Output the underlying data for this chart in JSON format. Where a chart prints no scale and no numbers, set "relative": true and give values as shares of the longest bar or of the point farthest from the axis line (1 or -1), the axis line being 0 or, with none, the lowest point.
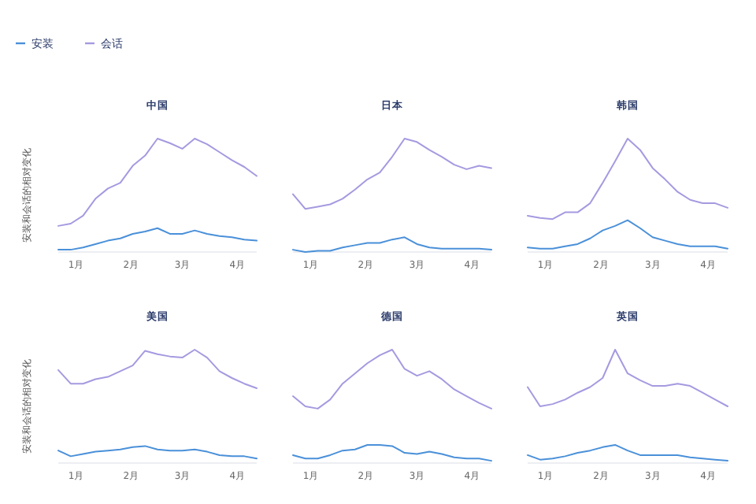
{
  "chart_data": [
    {
      "type": "line",
      "title": "中国",
      "ylabel": "安装和会话的相对变化",
      "relative": true,
      "legend": "top left",
      "tick_labels": "x",
      "xlim": [
        "--01-05",
        "--04-26"
      ],
      "xticks": [
        {
          "value": "--01-15",
          "label": "1月"
        },
        {
          "value": "--02-15",
          "label": "2月"
        },
        {
          "value": "--03-15",
          "label": "3月"
        },
        {
          "value": "--04-15",
          "label": "4月"
        }
      ],
      "x": [
        "--01-05",
        "--01-12",
        "--01-19",
        "--01-26",
        "--02-02",
        "--02-09",
        "--02-16",
        "--02-23",
        "--03-01",
        "--03-08",
        "--03-15",
        "--03-22",
        "--03-29",
        "--04-05",
        "--04-12",
        "--04-19",
        "--04-26"
      ],
      "series": [
        {
          "name": "安装",
          "color": "#4a90d9",
          "values": [
            0.02,
            0.02,
            0.04,
            0.07,
            0.1,
            0.12,
            0.16,
            0.18,
            0.21,
            0.16,
            0.16,
            0.19,
            0.16,
            0.14,
            0.13,
            0.11,
            0.1
          ]
        },
        {
          "name": "会话",
          "color": "#a59ae0",
          "values": [
            0.23,
            0.25,
            0.32,
            0.47,
            0.56,
            0.61,
            0.76,
            0.85,
            1.0,
            0.96,
            0.91,
            1.0,
            0.95,
            0.88,
            0.81,
            0.75,
            0.67
          ]
        }
      ]
    },
    {
      "type": "line",
      "title": "日本",
      "relative": true,
      "tick_labels": "x",
      "xlim": [
        "--01-05",
        "--04-26"
      ],
      "xticks": [
        {
          "value": "--01-15",
          "label": "1月"
        },
        {
          "value": "--02-15",
          "label": "2月"
        },
        {
          "value": "--03-15",
          "label": "3月"
        },
        {
          "value": "--04-15",
          "label": "4月"
        }
      ],
      "x": [
        "--01-05",
        "--01-12",
        "--01-19",
        "--01-26",
        "--02-02",
        "--02-09",
        "--02-16",
        "--02-23",
        "--03-01",
        "--03-08",
        "--03-15",
        "--03-22",
        "--03-29",
        "--04-05",
        "--04-12",
        "--04-19",
        "--04-26"
      ],
      "series": [
        {
          "color": "#4a90d9",
          "values": [
            0.02,
            0,
            0.01,
            0.01,
            0.04,
            0.06,
            0.08,
            0.08,
            0.11,
            0.13,
            0.07,
            0.04,
            0.03,
            0.03,
            0.03,
            0.03,
            0.02
          ]
        },
        {
          "color": "#a59ae0",
          "values": [
            0.51,
            0.38,
            0.4,
            0.42,
            0.47,
            0.55,
            0.64,
            0.7,
            0.84,
            1.0,
            0.97,
            0.9,
            0.84,
            0.77,
            0.73,
            0.76,
            0.74
          ]
        }
      ]
    },
    {
      "type": "line",
      "title": "韩国",
      "relative": true,
      "tick_labels": "x",
      "xlim": [
        "--01-05",
        "--04-26"
      ],
      "xticks": [
        {
          "value": "--01-15",
          "label": "1月"
        },
        {
          "value": "--02-15",
          "label": "2月"
        },
        {
          "value": "--03-15",
          "label": "3月"
        },
        {
          "value": "--04-15",
          "label": "4月"
        }
      ],
      "x": [
        "--01-05",
        "--01-12",
        "--01-19",
        "--01-26",
        "--02-02",
        "--02-09",
        "--02-16",
        "--02-23",
        "--03-01",
        "--03-08",
        "--03-15",
        "--03-22",
        "--03-29",
        "--04-05",
        "--04-12",
        "--04-19",
        "--04-26"
      ],
      "series": [
        {
          "color": "#4a90d9",
          "values": [
            0.04,
            0.03,
            0.03,
            0.05,
            0.07,
            0.12,
            0.19,
            0.23,
            0.28,
            0.21,
            0.13,
            0.1,
            0.07,
            0.05,
            0.05,
            0.05,
            0.03
          ]
        },
        {
          "color": "#a59ae0",
          "values": [
            0.32,
            0.3,
            0.29,
            0.35,
            0.35,
            0.43,
            0.61,
            0.8,
            1.0,
            0.9,
            0.74,
            0.64,
            0.53,
            0.46,
            0.43,
            0.43,
            0.39
          ]
        }
      ]
    },
    {
      "type": "line",
      "title": "美国",
      "ylabel": "安装和会话的相对变化",
      "relative": true,
      "tick_labels": "x",
      "xlim": [
        "--01-05",
        "--04-26"
      ],
      "xticks": [
        {
          "value": "--01-15",
          "label": "1月"
        },
        {
          "value": "--02-15",
          "label": "2月"
        },
        {
          "value": "--03-15",
          "label": "3月"
        },
        {
          "value": "--04-15",
          "label": "4月"
        }
      ],
      "x": [
        "--01-05",
        "--01-12",
        "--01-19",
        "--01-26",
        "--02-02",
        "--02-09",
        "--02-16",
        "--02-23",
        "--03-01",
        "--03-08",
        "--03-15",
        "--03-22",
        "--03-29",
        "--04-05",
        "--04-12",
        "--04-19",
        "--04-26"
      ],
      "series": [
        {
          "color": "#4a90d9",
          "values": [
            0.11,
            0.06,
            0.08,
            0.1,
            0.11,
            0.12,
            0.14,
            0.15,
            0.12,
            0.11,
            0.11,
            0.12,
            0.1,
            0.07,
            0.06,
            0.06,
            0.04
          ]
        },
        {
          "color": "#a59ae0",
          "values": [
            0.82,
            0.7,
            0.7,
            0.74,
            0.76,
            0.81,
            0.86,
            0.99,
            0.96,
            0.94,
            0.93,
            1.0,
            0.93,
            0.81,
            0.75,
            0.7,
            0.66
          ]
        }
      ]
    },
    {
      "type": "line",
      "title": "德国",
      "relative": true,
      "tick_labels": "x",
      "xlim": [
        "--01-05",
        "--04-26"
      ],
      "xticks": [
        {
          "value": "--01-15",
          "label": "1月"
        },
        {
          "value": "--02-15",
          "label": "2月"
        },
        {
          "value": "--03-15",
          "label": "3月"
        },
        {
          "value": "--04-15",
          "label": "4月"
        }
      ],
      "x": [
        "--01-05",
        "--01-12",
        "--01-19",
        "--01-26",
        "--02-02",
        "--02-09",
        "--02-16",
        "--02-23",
        "--03-01",
        "--03-08",
        "--03-15",
        "--03-22",
        "--03-29",
        "--04-05",
        "--04-12",
        "--04-19",
        "--04-26"
      ],
      "series": [
        {
          "color": "#4a90d9",
          "values": [
            0.07,
            0.04,
            0.04,
            0.07,
            0.11,
            0.12,
            0.16,
            0.16,
            0.15,
            0.09,
            0.08,
            0.1,
            0.08,
            0.05,
            0.04,
            0.04,
            0.02
          ]
        },
        {
          "color": "#a59ae0",
          "values": [
            0.59,
            0.5,
            0.48,
            0.56,
            0.7,
            0.79,
            0.88,
            0.95,
            1.0,
            0.83,
            0.77,
            0.81,
            0.74,
            0.65,
            0.59,
            0.53,
            0.48
          ]
        }
      ]
    },
    {
      "type": "line",
      "title": "英国",
      "relative": true,
      "tick_labels": "x",
      "xlim": [
        "--01-05",
        "--04-26"
      ],
      "xticks": [
        {
          "value": "--01-15",
          "label": "1月"
        },
        {
          "value": "--02-15",
          "label": "2月"
        },
        {
          "value": "--03-15",
          "label": "3月"
        },
        {
          "value": "--04-15",
          "label": "4月"
        }
      ],
      "x": [
        "--01-05",
        "--01-12",
        "--01-19",
        "--01-26",
        "--02-02",
        "--02-09",
        "--02-16",
        "--02-23",
        "--03-01",
        "--03-08",
        "--03-15",
        "--03-22",
        "--03-29",
        "--04-05",
        "--04-12",
        "--04-19",
        "--04-26"
      ],
      "series": [
        {
          "color": "#4a90d9",
          "values": [
            0.07,
            0.03,
            0.04,
            0.06,
            0.09,
            0.11,
            0.14,
            0.16,
            0.11,
            0.07,
            0.07,
            0.07,
            0.07,
            0.05,
            0.04,
            0.03,
            0.02
          ]
        },
        {
          "color": "#a59ae0",
          "values": [
            0.67,
            0.5,
            0.52,
            0.56,
            0.62,
            0.67,
            0.75,
            1.0,
            0.79,
            0.73,
            0.68,
            0.68,
            0.7,
            0.68,
            0.62,
            0.56,
            0.5
          ]
        }
      ]
    }
  ]
}
